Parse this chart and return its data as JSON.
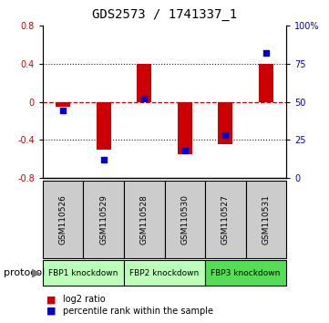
{
  "title": "GDS2573 / 1741337_1",
  "samples": [
    "GSM110526",
    "GSM110529",
    "GSM110528",
    "GSM110530",
    "GSM110527",
    "GSM110531"
  ],
  "log2_ratio": [
    -0.05,
    -0.5,
    0.4,
    -0.55,
    -0.45,
    0.4
  ],
  "percentile_rank": [
    44,
    12,
    52,
    18,
    28,
    82
  ],
  "ylim_left": [
    -0.8,
    0.8
  ],
  "ylim_right": [
    0,
    100
  ],
  "yticks_left": [
    -0.8,
    -0.4,
    0.0,
    0.4,
    0.8
  ],
  "yticks_right": [
    0,
    25,
    50,
    75,
    100
  ],
  "ytick_labels_right": [
    "0",
    "25",
    "50",
    "75",
    "100%"
  ],
  "bar_color": "#cc0000",
  "scatter_color": "#0000cc",
  "zero_line_color": "#cc0000",
  "dotted_line_color": "#222222",
  "groups": [
    {
      "label": "FBP1 knockdown",
      "start": 0,
      "end": 2,
      "color": "#bbffbb"
    },
    {
      "label": "FBP2 knockdown",
      "start": 2,
      "end": 4,
      "color": "#bbffbb"
    },
    {
      "label": "FBP3 knockdown",
      "start": 4,
      "end": 6,
      "color": "#55dd55"
    }
  ],
  "protocol_label": "protocol",
  "legend_bar_label": "log2 ratio",
  "legend_scatter_label": "percentile rank within the sample",
  "bar_width": 0.35,
  "background_color": "#ffffff",
  "plot_bg_color": "#ffffff",
  "sample_box_color": "#cccccc",
  "title_fontsize": 10,
  "tick_fontsize": 7,
  "label_fontsize": 7
}
